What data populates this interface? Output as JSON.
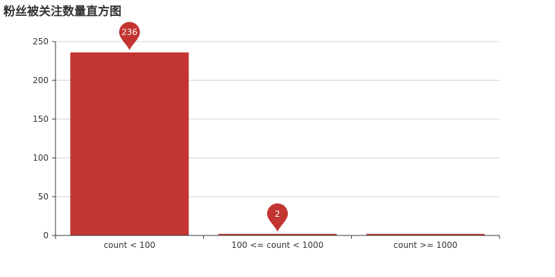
{
  "chart_data": {
    "type": "bar",
    "title": "粉丝被关注数量直方图",
    "categories": [
      "count < 100",
      "100 <= count < 1000",
      "count >= 1000"
    ],
    "values": [
      236,
      2,
      2
    ],
    "ylim": [
      0,
      250
    ],
    "yticks": [
      0,
      50,
      100,
      150,
      200,
      250
    ],
    "grid": true,
    "bar_color": "#c23531",
    "mark_point": {
      "shape": "pin",
      "labels": [
        {
          "category": "count < 100",
          "value": 236
        },
        {
          "category": "100 <= count < 1000",
          "value": 2
        }
      ]
    }
  }
}
